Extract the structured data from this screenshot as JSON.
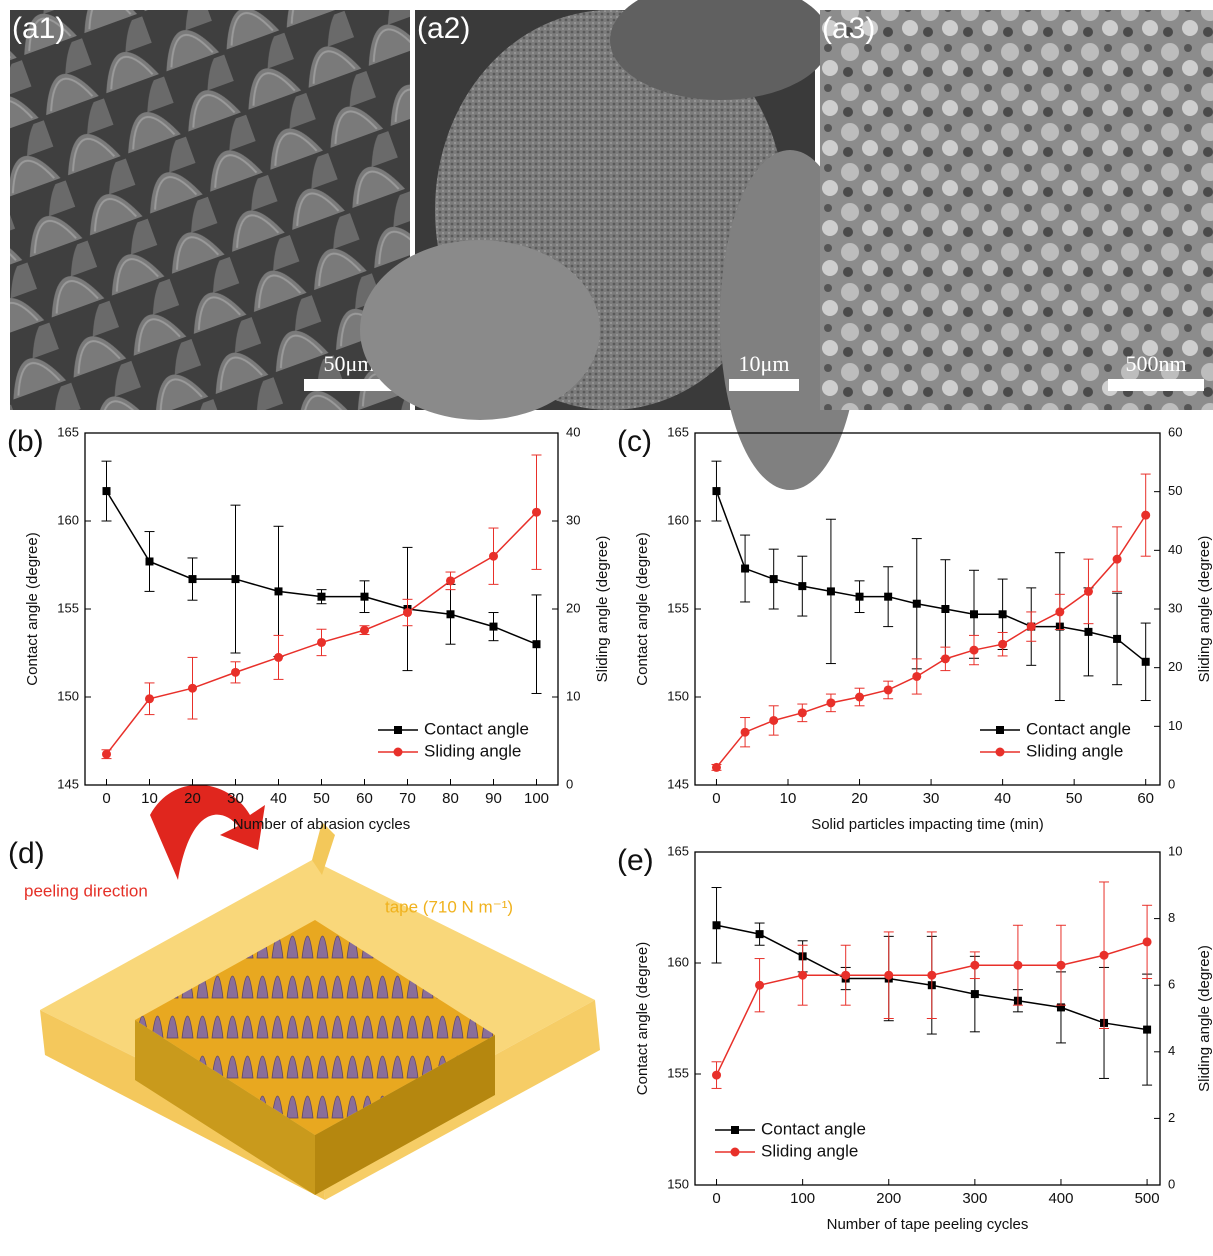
{
  "images": [
    {
      "label": "(a1)",
      "scale_bar": "50μm"
    },
    {
      "label": "(a2)",
      "scale_bar": "10μm"
    },
    {
      "label": "(a3)",
      "scale_bar": "500nm"
    }
  ],
  "diagram": {
    "label": "(d)",
    "arrow_text": "peeling direction",
    "tape_text": "tape (710 N m⁻¹)"
  },
  "chart_data": [
    {
      "type": "line",
      "label": "(b)",
      "xlabel": "Number of abrasion cycles",
      "ylabel": "Contact angle (degree)",
      "y2label": "Sliding angle (degree)",
      "x": [
        0,
        10,
        20,
        30,
        40,
        50,
        60,
        70,
        80,
        90,
        100
      ],
      "xlim": [
        -5,
        105
      ],
      "xticks": [
        0,
        10,
        20,
        30,
        40,
        50,
        60,
        70,
        80,
        90,
        100
      ],
      "ylim": [
        145,
        165
      ],
      "yticks": [
        145,
        150,
        155,
        160,
        165
      ],
      "y2lim": [
        0,
        40
      ],
      "y2ticks": [
        0,
        10,
        20,
        30,
        40
      ],
      "legend": "lower right",
      "series": [
        {
          "name": "Contact angle",
          "color": "#000000",
          "marker": "square",
          "values": [
            161.7,
            157.7,
            156.7,
            156.7,
            156.0,
            155.7,
            155.7,
            155.0,
            154.7,
            154.0,
            153.0
          ],
          "errors": [
            1.7,
            1.7,
            1.2,
            4.2,
            3.7,
            0.4,
            0.9,
            3.5,
            1.7,
            0.8,
            2.8
          ]
        },
        {
          "name": "Sliding angle",
          "color": "#e8302a",
          "marker": "circle",
          "axis": "y2",
          "values": [
            3.5,
            9.8,
            11.0,
            12.8,
            14.5,
            16.2,
            17.6,
            19.6,
            23.2,
            26.0,
            31.0
          ],
          "errors": [
            0.5,
            1.8,
            3.5,
            1.2,
            2.5,
            1.5,
            0.5,
            1.5,
            1.0,
            3.2,
            6.5
          ]
        }
      ]
    },
    {
      "type": "line",
      "label": "(c)",
      "xlabel": "Solid particles impacting time (min)",
      "ylabel": "Contact angle (degree)",
      "y2label": "Sliding angle (degree)",
      "x": [
        0,
        4,
        8,
        12,
        16,
        20,
        24,
        28,
        32,
        36,
        40,
        44,
        48,
        52,
        56,
        60
      ],
      "xlim": [
        -3,
        62
      ],
      "xticks": [
        0,
        10,
        20,
        30,
        40,
        50,
        60
      ],
      "ylim": [
        145,
        165
      ],
      "yticks": [
        145,
        150,
        155,
        160,
        165
      ],
      "y2lim": [
        0,
        60
      ],
      "y2ticks": [
        0,
        10,
        20,
        30,
        40,
        50,
        60
      ],
      "legend": "lower right",
      "series": [
        {
          "name": "Contact angle",
          "color": "#000000",
          "marker": "square",
          "values": [
            161.7,
            157.3,
            156.7,
            156.3,
            156.0,
            155.7,
            155.7,
            155.3,
            155.0,
            154.7,
            154.7,
            154.0,
            154.0,
            153.7,
            153.3,
            152.0
          ],
          "errors": [
            1.7,
            1.9,
            1.7,
            1.7,
            4.1,
            0.9,
            1.7,
            3.7,
            2.8,
            2.5,
            2.0,
            2.2,
            4.2,
            2.5,
            2.6,
            2.2
          ]
        },
        {
          "name": "Sliding angle",
          "color": "#e8302a",
          "marker": "circle",
          "axis": "y2",
          "values": [
            3,
            9,
            11,
            12.3,
            14,
            15,
            16.2,
            18.5,
            21.5,
            23,
            24,
            27,
            29.5,
            33,
            38.5,
            46
          ],
          "errors": [
            0.5,
            2.5,
            2.5,
            1.5,
            1.5,
            1.5,
            1.5,
            3,
            2,
            2.5,
            2,
            2.5,
            3,
            5.5,
            5.5,
            7
          ]
        }
      ]
    },
    {
      "type": "line",
      "label": "(e)",
      "xlabel": "Number of tape peeling cycles",
      "ylabel": "Contact angle (degree)",
      "y2label": "Sliding angle (degree)",
      "x": [
        0,
        50,
        100,
        150,
        200,
        250,
        300,
        350,
        400,
        450,
        500
      ],
      "xlim": [
        -25,
        515
      ],
      "xticks": [
        0,
        100,
        200,
        300,
        400,
        500
      ],
      "ylim": [
        150,
        165
      ],
      "yticks": [
        150,
        155,
        160,
        165
      ],
      "y2lim": [
        0,
        10
      ],
      "y2ticks": [
        0,
        2,
        4,
        6,
        8,
        10
      ],
      "legend": "lower left",
      "series": [
        {
          "name": "Contact angle",
          "color": "#000000",
          "marker": "square",
          "values": [
            161.7,
            161.3,
            160.3,
            159.3,
            159.3,
            159.0,
            158.6,
            158.3,
            158.0,
            157.3,
            157.0
          ],
          "errors": [
            1.7,
            0.5,
            0.7,
            0.5,
            1.9,
            2.2,
            1.7,
            0.5,
            1.6,
            2.5,
            2.5
          ]
        },
        {
          "name": "Sliding angle",
          "color": "#e8302a",
          "marker": "circle",
          "axis": "y2",
          "values": [
            3.3,
            6.0,
            6.3,
            6.3,
            6.3,
            6.3,
            6.6,
            6.6,
            6.6,
            6.9,
            7.3
          ],
          "errors": [
            0.4,
            0.8,
            0.9,
            0.9,
            1.3,
            1.3,
            0.4,
            1.2,
            1.2,
            2.2,
            1.1
          ]
        }
      ]
    }
  ]
}
